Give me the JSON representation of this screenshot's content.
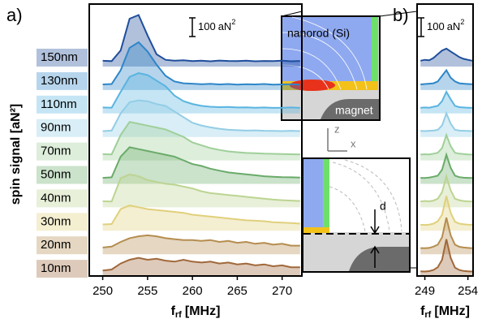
{
  "chart_data": [
    {
      "type": "line",
      "panel_label": "a)",
      "x": [
        250,
        251,
        252,
        253,
        254,
        255,
        256,
        257,
        258,
        259,
        260,
        261,
        262,
        263,
        264,
        265,
        266,
        267,
        268,
        269,
        270,
        271,
        272
      ],
      "xlim": [
        248.5,
        272.2
      ],
      "xticks": [
        250,
        255,
        260,
        265,
        270
      ],
      "x_label": [
        "f",
        "rf",
        "[MHz]"
      ],
      "scale_bar": {
        "value": 100,
        "unit": "aN",
        "exp": "2"
      },
      "series": [
        {
          "name": "150nm",
          "color": "#1f4e9c",
          "values": [
            5,
            3,
            60,
            230,
            250,
            140,
            40,
            10,
            5,
            8,
            3,
            5,
            2,
            6,
            4,
            3,
            5,
            2,
            4,
            3,
            5,
            2,
            4
          ]
        },
        {
          "name": "130nm",
          "color": "#2e86c8",
          "values": [
            4,
            6,
            80,
            200,
            230,
            180,
            110,
            50,
            20,
            10,
            8,
            5,
            7,
            4,
            6,
            3,
            5,
            4,
            6,
            3,
            4,
            5,
            3
          ]
        },
        {
          "name": "110nm",
          "color": "#5ab4e0",
          "values": [
            6,
            5,
            90,
            170,
            190,
            180,
            150,
            120,
            70,
            40,
            25,
            15,
            10,
            8,
            9,
            6,
            7,
            5,
            6,
            4,
            5,
            6,
            4
          ]
        },
        {
          "name": "90nm",
          "color": "#93cde6",
          "values": [
            5,
            8,
            100,
            160,
            170,
            165,
            150,
            140,
            110,
            80,
            50,
            35,
            25,
            18,
            12,
            10,
            8,
            9,
            7,
            6,
            5,
            7,
            5
          ]
        },
        {
          "name": "70nm",
          "color": "#9fcf99",
          "values": [
            8,
            6,
            110,
            180,
            170,
            160,
            150,
            140,
            120,
            100,
            70,
            55,
            40,
            30,
            22,
            18,
            14,
            12,
            10,
            9,
            8,
            7,
            6
          ]
        },
        {
          "name": "50nm",
          "color": "#6aab6a",
          "values": [
            6,
            9,
            120,
            170,
            160,
            150,
            140,
            130,
            120,
            100,
            80,
            70,
            55,
            45,
            35,
            30,
            25,
            20,
            15,
            12,
            10,
            9,
            8
          ]
        },
        {
          "name": "40nm",
          "color": "#bcd492",
          "values": [
            7,
            5,
            130,
            150,
            140,
            120,
            110,
            100,
            95,
            85,
            75,
            60,
            50,
            45,
            40,
            35,
            30,
            25,
            20,
            15,
            12,
            10,
            8
          ]
        },
        {
          "name": "30nm",
          "color": "#e0d07c",
          "values": [
            8,
            10,
            90,
            110,
            100,
            90,
            85,
            80,
            75,
            70,
            60,
            55,
            50,
            45,
            40,
            35,
            30,
            28,
            25,
            20,
            18,
            15,
            12
          ]
        },
        {
          "name": "20nm",
          "color": "#b58d4f",
          "values": [
            10,
            15,
            40,
            60,
            70,
            75,
            70,
            60,
            55,
            50,
            50,
            45,
            50,
            40,
            45,
            35,
            40,
            30,
            35,
            25,
            30,
            20,
            20
          ]
        },
        {
          "name": "10nm",
          "color": "#a0683a",
          "values": [
            12,
            18,
            50,
            70,
            80,
            70,
            75,
            65,
            60,
            70,
            60,
            55,
            60,
            50,
            55,
            45,
            50,
            40,
            45,
            35,
            40,
            30,
            30
          ]
        }
      ]
    },
    {
      "type": "line",
      "panel_label": "b)",
      "x": [
        248.5,
        249,
        249.5,
        250,
        250.5,
        251,
        251.5,
        252,
        252.5,
        253,
        253.5,
        254,
        254.5
      ],
      "xlim": [
        248.1,
        254.6
      ],
      "xticks": [
        249,
        254
      ],
      "x_label": [
        "f",
        "rf",
        "[MHz]"
      ],
      "scale_bar": {
        "value": 100,
        "unit": "aN",
        "exp": "2"
      },
      "series": [
        {
          "color": "#1f4e9c",
          "values": [
            5,
            10,
            8,
            20,
            40,
            60,
            70,
            55,
            40,
            25,
            15,
            10,
            5
          ]
        },
        {
          "color": "#2e86c8",
          "values": [
            4,
            6,
            8,
            10,
            20,
            50,
            80,
            40,
            20,
            10,
            8,
            6,
            5
          ]
        },
        {
          "color": "#5ab4e0",
          "values": [
            5,
            6,
            5,
            10,
            15,
            40,
            90,
            50,
            15,
            8,
            6,
            5,
            4
          ]
        },
        {
          "color": "#93cde6",
          "values": [
            6,
            5,
            7,
            8,
            12,
            35,
            100,
            45,
            12,
            8,
            7,
            6,
            5
          ]
        },
        {
          "color": "#9fcf99",
          "values": [
            5,
            7,
            6,
            10,
            15,
            40,
            110,
            50,
            15,
            10,
            8,
            6,
            5
          ]
        },
        {
          "color": "#6aab6a",
          "values": [
            6,
            5,
            8,
            12,
            18,
            50,
            130,
            60,
            18,
            10,
            7,
            6,
            5
          ]
        },
        {
          "color": "#bcd492",
          "values": [
            5,
            8,
            6,
            10,
            20,
            55,
            140,
            65,
            20,
            12,
            8,
            6,
            5
          ]
        },
        {
          "color": "#e0d07c",
          "values": [
            6,
            5,
            7,
            12,
            25,
            60,
            160,
            70,
            22,
            12,
            9,
            7,
            6
          ]
        },
        {
          "color": "#b58d4f",
          "values": [
            7,
            6,
            8,
            15,
            25,
            65,
            170,
            75,
            25,
            14,
            10,
            8,
            6
          ]
        },
        {
          "color": "#a0683a",
          "values": [
            8,
            7,
            9,
            15,
            30,
            70,
            180,
            80,
            28,
            15,
            10,
            8,
            7
          ]
        }
      ]
    }
  ],
  "y_label": "spin signal [aN²]",
  "insets": {
    "top_label": "nanorod (Si)",
    "magnet": "magnet",
    "axis_z": "z",
    "axis_x": "x",
    "distance": "d"
  }
}
